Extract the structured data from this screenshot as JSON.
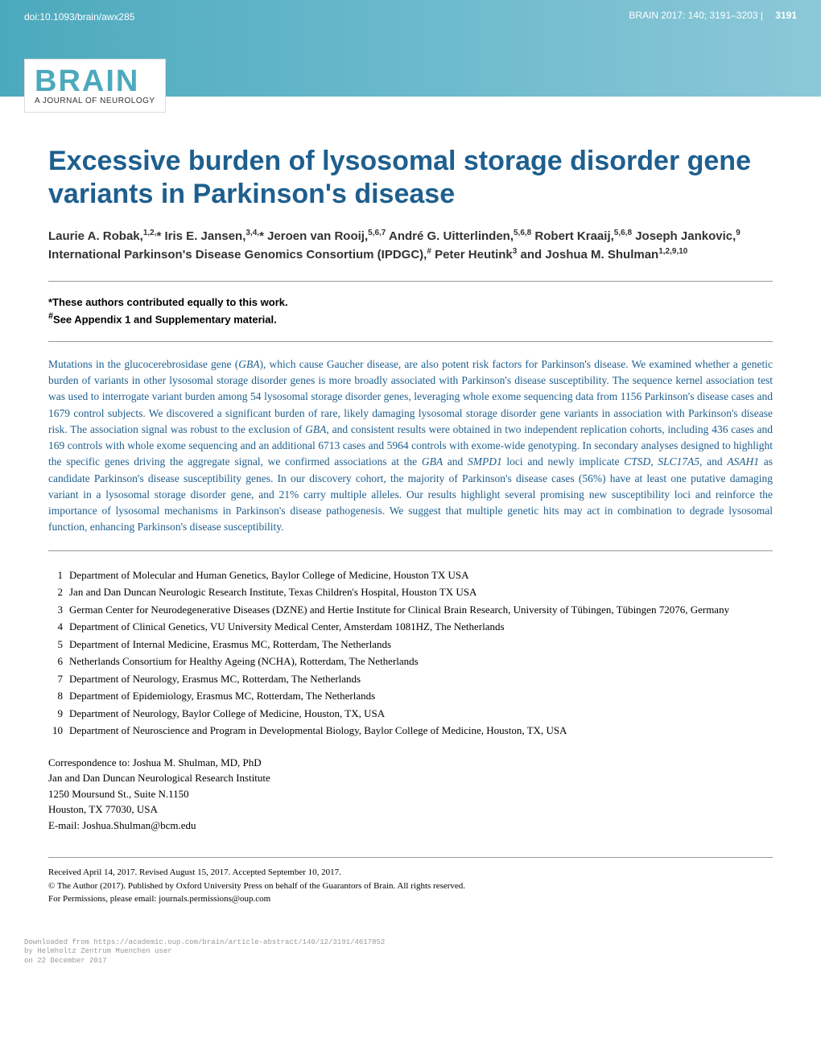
{
  "header": {
    "doi": "doi:10.1093/brain/awx285",
    "journal_ref": "BRAIN 2017: 140; 3191–3203",
    "page_number": "3191",
    "logo_text": "BRAIN",
    "logo_subtitle": "A JOURNAL OF NEUROLOGY"
  },
  "title": "Excessive burden of lysosomal storage disorder gene variants in Parkinson's disease",
  "authors_html": "Laurie A. Robak,<sup>1,2,</sup>* Iris E. Jansen,<sup>3,4,</sup>* Jeroen van Rooij,<sup>5,6,7</sup> André G. Uitterlinden,<sup>5,6,8</sup> Robert Kraaij,<sup>5,6,8</sup> Joseph Jankovic,<sup>9</sup> International Parkinson's Disease Genomics Consortium (IPDGC),<sup>#</sup> Peter Heutink<sup>3</sup> and Joshua M. Shulman<sup>1,2,9,10</sup>",
  "footnotes": {
    "equal": "*These authors contributed equally to this work.",
    "appendix": "#See Appendix 1 and Supplementary material."
  },
  "abstract": "Mutations in the glucocerebrosidase gene (<em>GBA</em>), which cause Gaucher disease, are also potent risk factors for Parkinson's disease. We examined whether a genetic burden of variants in other lysosomal storage disorder genes is more broadly associated with Parkinson's disease susceptibility. The sequence kernel association test was used to interrogate variant burden among 54 lysosomal storage disorder genes, leveraging whole exome sequencing data from 1156 Parkinson's disease cases and 1679 control subjects. We discovered a significant burden of rare, likely damaging lysosomal storage disorder gene variants in association with Parkinson's disease risk. The association signal was robust to the exclusion of <em>GBA</em>, and consistent results were obtained in two independent replication cohorts, including 436 cases and 169 controls with whole exome sequencing and an additional 6713 cases and 5964 controls with exome-wide genotyping. In secondary analyses designed to highlight the specific genes driving the aggregate signal, we confirmed associations at the <em>GBA</em> and <em>SMPD1</em> loci and newly implicate <em>CTSD</em>, <em>SLC17A5</em>, and <em>ASAH1</em> as candidate Parkinson's disease susceptibility genes. In our discovery cohort, the majority of Parkinson's disease cases (56%) have at least one putative damaging variant in a lysosomal storage disorder gene, and 21% carry multiple alleles. Our results highlight several promising new susceptibility loci and reinforce the importance of lysosomal mechanisms in Parkinson's disease pathogenesis. We suggest that multiple genetic hits may act in combination to degrade lysosomal function, enhancing Parkinson's disease susceptibility.",
  "affiliations": [
    {
      "num": "1",
      "text": "Department of Molecular and Human Genetics, Baylor College of Medicine, Houston TX USA"
    },
    {
      "num": "2",
      "text": "Jan and Dan Duncan Neurologic Research Institute, Texas Children's Hospital, Houston TX USA"
    },
    {
      "num": "3",
      "text": "German Center for Neurodegenerative Diseases (DZNE) and Hertie Institute for Clinical Brain Research, University of Tübingen, Tübingen 72076, Germany"
    },
    {
      "num": "4",
      "text": "Department of Clinical Genetics, VU University Medical Center, Amsterdam 1081HZ, The Netherlands"
    },
    {
      "num": "5",
      "text": "Department of Internal Medicine, Erasmus MC, Rotterdam, The Netherlands"
    },
    {
      "num": "6",
      "text": "Netherlands Consortium for Healthy Ageing (NCHA), Rotterdam, The Netherlands"
    },
    {
      "num": "7",
      "text": "Department of Neurology, Erasmus MC, Rotterdam, The Netherlands"
    },
    {
      "num": "8",
      "text": "Department of Epidemiology, Erasmus MC, Rotterdam, The Netherlands"
    },
    {
      "num": "9",
      "text": "Department of Neurology, Baylor College of Medicine, Houston, TX, USA"
    },
    {
      "num": "10",
      "text": "Department of Neuroscience and Program in Developmental Biology, Baylor College of Medicine, Houston, TX, USA"
    }
  ],
  "correspondence": {
    "label": "Correspondence to: Joshua M. Shulman, MD, PhD",
    "line1": "Jan and Dan Duncan Neurological Research Institute",
    "line2": "1250 Moursund St., Suite N.1150",
    "line3": "Houston, TX 77030, USA",
    "line4": "E-mail: Joshua.Shulman@bcm.edu"
  },
  "received": {
    "dates": "Received April 14, 2017. Revised August 15, 2017. Accepted September 10, 2017.",
    "copyright": "© The Author (2017). Published by Oxford University Press on behalf of the Guarantors of Brain. All rights reserved.",
    "permissions": "For Permissions, please email: journals.permissions@oup.com"
  },
  "download_footer": {
    "line1": "Downloaded from https://academic.oup.com/brain/article-abstract/140/12/3191/4617852",
    "line2": "by Helmholtz Zentrum Muenchen user",
    "line3": "on 22 December 2017"
  },
  "colors": {
    "title_color": "#1e5f8e",
    "banner_start": "#4ca9bd",
    "banner_end": "#8cc8d8",
    "abstract_color": "#1e5f8e"
  }
}
